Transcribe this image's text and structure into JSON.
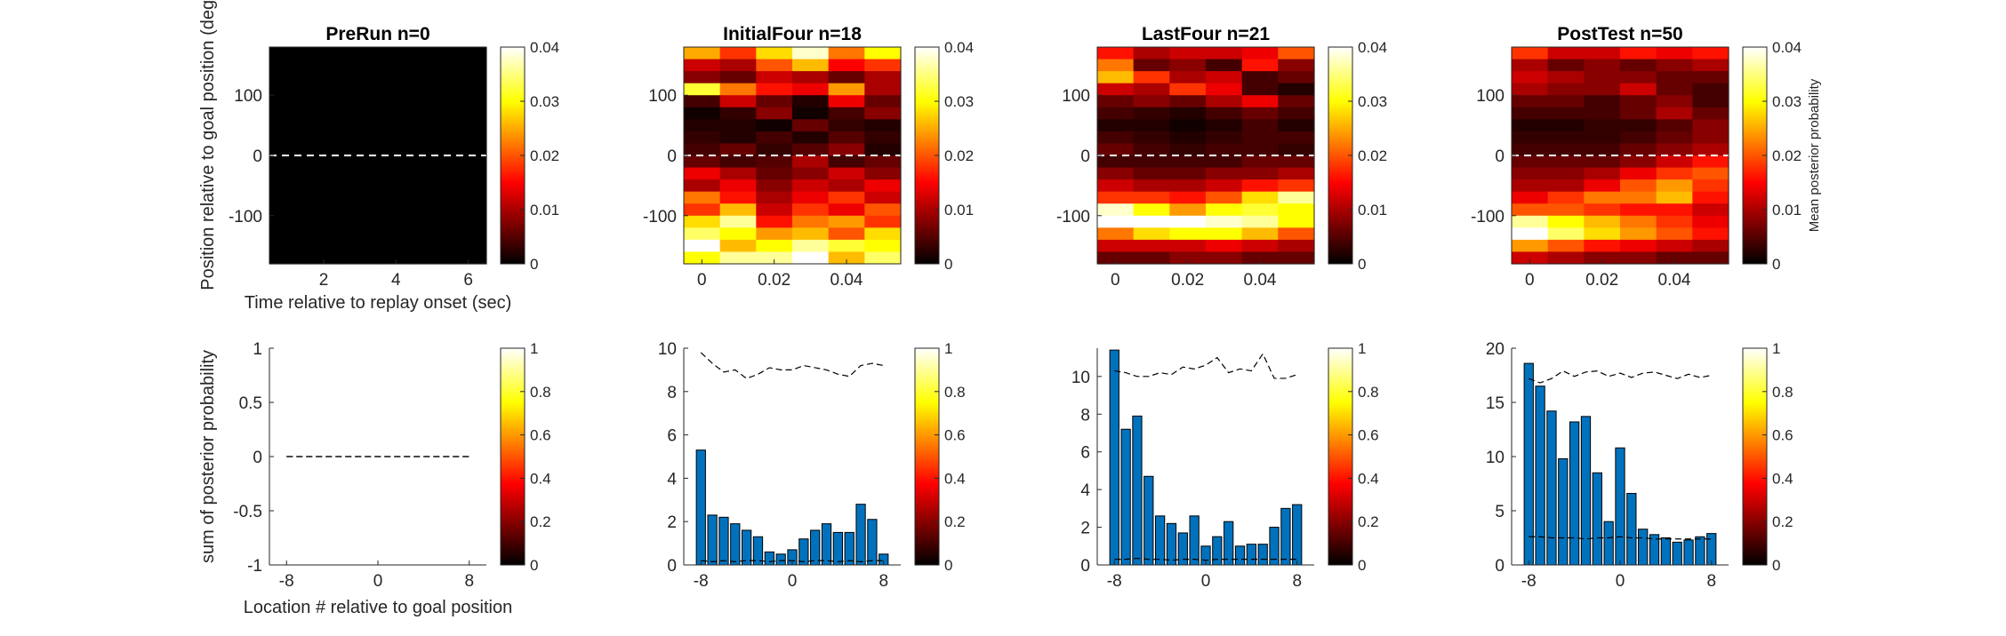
{
  "figure": {
    "background": "#ffffff",
    "bar_color": "#0072BD"
  },
  "chart_data": [
    {
      "type": "heatmap",
      "title": "PreRun n=0",
      "xlabel": "Time relative to replay onset (sec)",
      "ylabel": "Position relative to goal position (deg)",
      "xlim": [
        0.5,
        6.5
      ],
      "ylim": [
        -180,
        180
      ],
      "xticks": [
        2,
        4,
        6
      ],
      "yticks": [
        100,
        0,
        -100
      ],
      "colormap": "hot",
      "clim": [
        0,
        0.04
      ],
      "colorbar_ticks": [
        0.04,
        0.03,
        0.02,
        0.01,
        0
      ],
      "colorbar_label": "",
      "reference_line": {
        "y": 0,
        "style": "dashed",
        "color": "#ffffff"
      },
      "values": [
        [
          0,
          0,
          0,
          0,
          0,
          0
        ],
        [
          0,
          0,
          0,
          0,
          0,
          0
        ],
        [
          0,
          0,
          0,
          0,
          0,
          0
        ],
        [
          0,
          0,
          0,
          0,
          0,
          0
        ],
        [
          0,
          0,
          0,
          0,
          0,
          0
        ],
        [
          0,
          0,
          0,
          0,
          0,
          0
        ],
        [
          0,
          0,
          0,
          0,
          0,
          0
        ],
        [
          0,
          0,
          0,
          0,
          0,
          0
        ],
        [
          0,
          0,
          0,
          0,
          0,
          0
        ],
        [
          0,
          0,
          0,
          0,
          0,
          0
        ],
        [
          0,
          0,
          0,
          0,
          0,
          0
        ],
        [
          0,
          0,
          0,
          0,
          0,
          0
        ],
        [
          0,
          0,
          0,
          0,
          0,
          0
        ],
        [
          0,
          0,
          0,
          0,
          0,
          0
        ],
        [
          0,
          0,
          0,
          0,
          0,
          0
        ],
        [
          0,
          0,
          0,
          0,
          0,
          0
        ],
        [
          0,
          0,
          0,
          0,
          0,
          0
        ],
        [
          0,
          0,
          0,
          0,
          0,
          0
        ]
      ]
    },
    {
      "type": "heatmap",
      "title": "InitialFour n=18",
      "xlabel": "",
      "ylabel": "",
      "xlim": [
        -0.005,
        0.055
      ],
      "ylim": [
        -180,
        180
      ],
      "xticks": [
        0,
        0.02,
        0.04
      ],
      "yticks": [
        100,
        0,
        -100
      ],
      "colormap": "hot",
      "clim": [
        0,
        0.04
      ],
      "colorbar_ticks": [
        0.04,
        0.03,
        0.02,
        0.01,
        0
      ],
      "colorbar_label": "",
      "reference_line": {
        "y": 0,
        "style": "dashed",
        "color": "#ffffff"
      },
      "values": [
        [
          0.025,
          0.018,
          0.028,
          0.038,
          0.022,
          0.03
        ],
        [
          0.012,
          0.01,
          0.02,
          0.026,
          0.015,
          0.018
        ],
        [
          0.008,
          0.006,
          0.012,
          0.01,
          0.006,
          0.01
        ],
        [
          0.032,
          0.022,
          0.016,
          0.014,
          0.024,
          0.01
        ],
        [
          0.004,
          0.012,
          0.006,
          0.002,
          0.014,
          0.006
        ],
        [
          0.001,
          0.003,
          0.008,
          0.001,
          0.004,
          0.008
        ],
        [
          0.002,
          0.002,
          0.001,
          0.006,
          0.003,
          0.002
        ],
        [
          0.003,
          0.002,
          0.004,
          0.002,
          0.005,
          0.003
        ],
        [
          0.004,
          0.006,
          0.003,
          0.005,
          0.008,
          0.002
        ],
        [
          0.006,
          0.004,
          0.005,
          0.01,
          0.004,
          0.006
        ],
        [
          0.014,
          0.01,
          0.006,
          0.008,
          0.012,
          0.008
        ],
        [
          0.01,
          0.014,
          0.008,
          0.012,
          0.01,
          0.014
        ],
        [
          0.022,
          0.016,
          0.01,
          0.014,
          0.018,
          0.012
        ],
        [
          0.018,
          0.026,
          0.012,
          0.018,
          0.014,
          0.02
        ],
        [
          0.028,
          0.036,
          0.016,
          0.022,
          0.024,
          0.018
        ],
        [
          0.034,
          0.03,
          0.024,
          0.026,
          0.02,
          0.028
        ],
        [
          0.04,
          0.026,
          0.03,
          0.036,
          0.032,
          0.03
        ],
        [
          0.03,
          0.036,
          0.036,
          0.04,
          0.026,
          0.034
        ]
      ]
    },
    {
      "type": "heatmap",
      "title": "LastFour n=21",
      "xlabel": "",
      "ylabel": "",
      "xlim": [
        -0.005,
        0.055
      ],
      "ylim": [
        -180,
        180
      ],
      "xticks": [
        0,
        0.02,
        0.04
      ],
      "yticks": [
        100,
        0,
        -100
      ],
      "colormap": "hot",
      "clim": [
        0,
        0.04
      ],
      "colorbar_ticks": [
        0.04,
        0.03,
        0.02,
        0.01,
        0
      ],
      "colorbar_label": "",
      "reference_line": {
        "y": 0,
        "style": "dashed",
        "color": "#ffffff"
      },
      "values": [
        [
          0.016,
          0.01,
          0.012,
          0.012,
          0.014,
          0.02
        ],
        [
          0.022,
          0.006,
          0.008,
          0.004,
          0.016,
          0.008
        ],
        [
          0.026,
          0.018,
          0.01,
          0.012,
          0.004,
          0.006
        ],
        [
          0.012,
          0.01,
          0.018,
          0.014,
          0.004,
          0.002
        ],
        [
          0.006,
          0.008,
          0.006,
          0.01,
          0.014,
          0.006
        ],
        [
          0.004,
          0.003,
          0.002,
          0.004,
          0.006,
          0.004
        ],
        [
          0.002,
          0.002,
          0.001,
          0.002,
          0.004,
          0.002
        ],
        [
          0.004,
          0.003,
          0.002,
          0.003,
          0.004,
          0.004
        ],
        [
          0.006,
          0.004,
          0.003,
          0.004,
          0.004,
          0.003
        ],
        [
          0.004,
          0.004,
          0.004,
          0.004,
          0.006,
          0.006
        ],
        [
          0.008,
          0.006,
          0.006,
          0.008,
          0.008,
          0.01
        ],
        [
          0.012,
          0.01,
          0.01,
          0.012,
          0.016,
          0.018
        ],
        [
          0.018,
          0.018,
          0.016,
          0.02,
          0.028,
          0.036
        ],
        [
          0.038,
          0.03,
          0.024,
          0.03,
          0.032,
          0.03
        ],
        [
          0.04,
          0.04,
          0.04,
          0.038,
          0.036,
          0.03
        ],
        [
          0.022,
          0.028,
          0.03,
          0.03,
          0.026,
          0.02
        ],
        [
          0.012,
          0.012,
          0.012,
          0.014,
          0.012,
          0.01
        ],
        [
          0.006,
          0.006,
          0.008,
          0.008,
          0.006,
          0.006
        ]
      ]
    },
    {
      "type": "heatmap",
      "title": "PostTest n=50",
      "xlabel": "",
      "ylabel": "",
      "xlim": [
        -0.005,
        0.055
      ],
      "ylim": [
        -180,
        180
      ],
      "xticks": [
        0,
        0.02,
        0.04
      ],
      "yticks": [
        100,
        0,
        -100
      ],
      "colormap": "hot",
      "clim": [
        0,
        0.04
      ],
      "colorbar_ticks": [
        0.04,
        0.03,
        0.02,
        0.01,
        0
      ],
      "colorbar_label": "Mean posterior probability",
      "reference_line": {
        "y": 0,
        "style": "dashed",
        "color": "#ffffff"
      },
      "values": [
        [
          0.018,
          0.012,
          0.012,
          0.016,
          0.014,
          0.016
        ],
        [
          0.01,
          0.006,
          0.008,
          0.006,
          0.008,
          0.01
        ],
        [
          0.012,
          0.01,
          0.008,
          0.008,
          0.006,
          0.006
        ],
        [
          0.01,
          0.008,
          0.008,
          0.012,
          0.006,
          0.004
        ],
        [
          0.006,
          0.006,
          0.004,
          0.006,
          0.008,
          0.004
        ],
        [
          0.004,
          0.004,
          0.004,
          0.006,
          0.01,
          0.006
        ],
        [
          0.002,
          0.002,
          0.003,
          0.003,
          0.005,
          0.008
        ],
        [
          0.003,
          0.003,
          0.003,
          0.004,
          0.006,
          0.008
        ],
        [
          0.004,
          0.004,
          0.004,
          0.006,
          0.008,
          0.01
        ],
        [
          0.006,
          0.006,
          0.006,
          0.008,
          0.012,
          0.016
        ],
        [
          0.008,
          0.008,
          0.01,
          0.014,
          0.018,
          0.02
        ],
        [
          0.01,
          0.01,
          0.014,
          0.02,
          0.024,
          0.018
        ],
        [
          0.014,
          0.018,
          0.022,
          0.022,
          0.026,
          0.016
        ],
        [
          0.02,
          0.02,
          0.018,
          0.016,
          0.016,
          0.012
        ],
        [
          0.036,
          0.03,
          0.026,
          0.022,
          0.018,
          0.014
        ],
        [
          0.04,
          0.034,
          0.028,
          0.024,
          0.02,
          0.016
        ],
        [
          0.024,
          0.02,
          0.016,
          0.014,
          0.012,
          0.01
        ],
        [
          0.012,
          0.01,
          0.008,
          0.008,
          0.006,
          0.006
        ]
      ]
    },
    {
      "type": "bar",
      "title": "",
      "xlabel": "Location # relative to goal position",
      "ylabel": "sum of posterior probability",
      "x": [
        -8,
        -7,
        -6,
        -5,
        -4,
        -3,
        -2,
        -1,
        0,
        1,
        2,
        3,
        4,
        5,
        6,
        7,
        8
      ],
      "xlim": [
        -9.5,
        9.5
      ],
      "ylim": [
        -1,
        1
      ],
      "xticks": [
        -8,
        0,
        8
      ],
      "yticks": [
        1,
        0.5,
        0,
        -0.5,
        -1
      ],
      "values": [
        0,
        0,
        0,
        0,
        0,
        0,
        0,
        0,
        0,
        0,
        0,
        0,
        0,
        0,
        0,
        0,
        0
      ],
      "upper_dashed": [
        0,
        0,
        0,
        0,
        0,
        0,
        0,
        0,
        0,
        0,
        0,
        0,
        0,
        0,
        0,
        0,
        0
      ],
      "lower_dashed": [
        0,
        0,
        0,
        0,
        0,
        0,
        0,
        0,
        0,
        0,
        0,
        0,
        0,
        0,
        0,
        0,
        0
      ],
      "colormap": "hot",
      "clim": [
        0,
        1
      ],
      "colorbar_ticks": [
        1,
        0.8,
        0.6,
        0.4,
        0.2,
        0
      ]
    },
    {
      "type": "bar",
      "title": "",
      "xlabel": "",
      "ylabel": "",
      "x": [
        -8,
        -7,
        -6,
        -5,
        -4,
        -3,
        -2,
        -1,
        0,
        1,
        2,
        3,
        4,
        5,
        6,
        7,
        8
      ],
      "xlim": [
        -9.5,
        9.5
      ],
      "ylim": [
        0,
        10
      ],
      "xticks": [
        -8,
        0,
        8
      ],
      "yticks": [
        10,
        8,
        6,
        4,
        2,
        0
      ],
      "values": [
        5.3,
        2.3,
        2.2,
        1.9,
        1.6,
        1.3,
        0.6,
        0.5,
        0.7,
        1.2,
        1.6,
        1.9,
        1.5,
        1.5,
        2.8,
        2.1,
        0.5
      ],
      "upper_dashed": [
        9.8,
        9.3,
        8.9,
        9.0,
        8.6,
        8.8,
        9.1,
        9.0,
        9.0,
        9.2,
        9.1,
        9.0,
        8.8,
        8.7,
        9.2,
        9.3,
        9.2
      ],
      "lower_dashed": [
        0.2,
        0.15,
        0.2,
        0.15,
        0.2,
        0.2,
        0.15,
        0.2,
        0.2,
        0.15,
        0.2,
        0.2,
        0.15,
        0.2,
        0.15,
        0.2,
        0.2
      ],
      "colormap": "hot",
      "clim": [
        0,
        1
      ],
      "colorbar_ticks": [
        1,
        0.8,
        0.6,
        0.4,
        0.2,
        0
      ]
    },
    {
      "type": "bar",
      "title": "",
      "xlabel": "",
      "ylabel": "",
      "x": [
        -8,
        -7,
        -6,
        -5,
        -4,
        -3,
        -2,
        -1,
        0,
        1,
        2,
        3,
        4,
        5,
        6,
        7,
        8
      ],
      "xlim": [
        -9.5,
        9.5
      ],
      "ylim": [
        0,
        11.5
      ],
      "xticks": [
        -8,
        0,
        8
      ],
      "yticks": [
        10,
        8,
        6,
        4,
        2,
        0
      ],
      "values": [
        11.4,
        7.2,
        7.9,
        4.7,
        2.6,
        2.2,
        1.7,
        2.6,
        1.0,
        1.5,
        2.3,
        1.0,
        1.1,
        1.1,
        2.0,
        3.0,
        3.2
      ],
      "upper_dashed": [
        10.3,
        10.2,
        10.0,
        10.0,
        10.2,
        10.1,
        10.5,
        10.4,
        10.6,
        11.0,
        10.2,
        10.4,
        10.3,
        11.2,
        9.9,
        9.9,
        10.1
      ],
      "lower_dashed": [
        0.3,
        0.3,
        0.35,
        0.3,
        0.3,
        0.25,
        0.3,
        0.3,
        0.25,
        0.3,
        0.3,
        0.3,
        0.3,
        0.3,
        0.3,
        0.3,
        0.3
      ],
      "colormap": "hot",
      "clim": [
        0,
        1
      ],
      "colorbar_ticks": [
        1,
        0.8,
        0.6,
        0.4,
        0.2,
        0
      ]
    },
    {
      "type": "bar",
      "title": "",
      "xlabel": "",
      "ylabel": "",
      "x": [
        -8,
        -7,
        -6,
        -5,
        -4,
        -3,
        -2,
        -1,
        0,
        1,
        2,
        3,
        4,
        5,
        6,
        7,
        8
      ],
      "xlim": [
        -9.5,
        9.5
      ],
      "ylim": [
        0,
        20
      ],
      "xticks": [
        -8,
        0,
        8
      ],
      "yticks": [
        20,
        15,
        10,
        5,
        0
      ],
      "values": [
        18.6,
        16.5,
        14.2,
        9.8,
        13.2,
        13.7,
        8.5,
        4.0,
        10.8,
        6.6,
        3.3,
        2.8,
        2.5,
        2.1,
        2.3,
        2.6,
        2.9
      ],
      "upper_dashed": [
        17.2,
        16.8,
        17.2,
        17.9,
        17.4,
        17.8,
        17.9,
        17.4,
        17.7,
        17.3,
        17.7,
        17.8,
        17.5,
        17.2,
        17.6,
        17.3,
        17.5
      ],
      "lower_dashed": [
        2.6,
        2.6,
        2.5,
        2.5,
        2.5,
        2.4,
        2.5,
        2.5,
        2.6,
        2.5,
        2.5,
        2.4,
        2.4,
        2.4,
        2.4,
        2.4,
        2.4
      ],
      "colormap": "hot",
      "clim": [
        0,
        1
      ],
      "colorbar_ticks": [
        1,
        0.8,
        0.6,
        0.4,
        0.2,
        0
      ]
    }
  ]
}
